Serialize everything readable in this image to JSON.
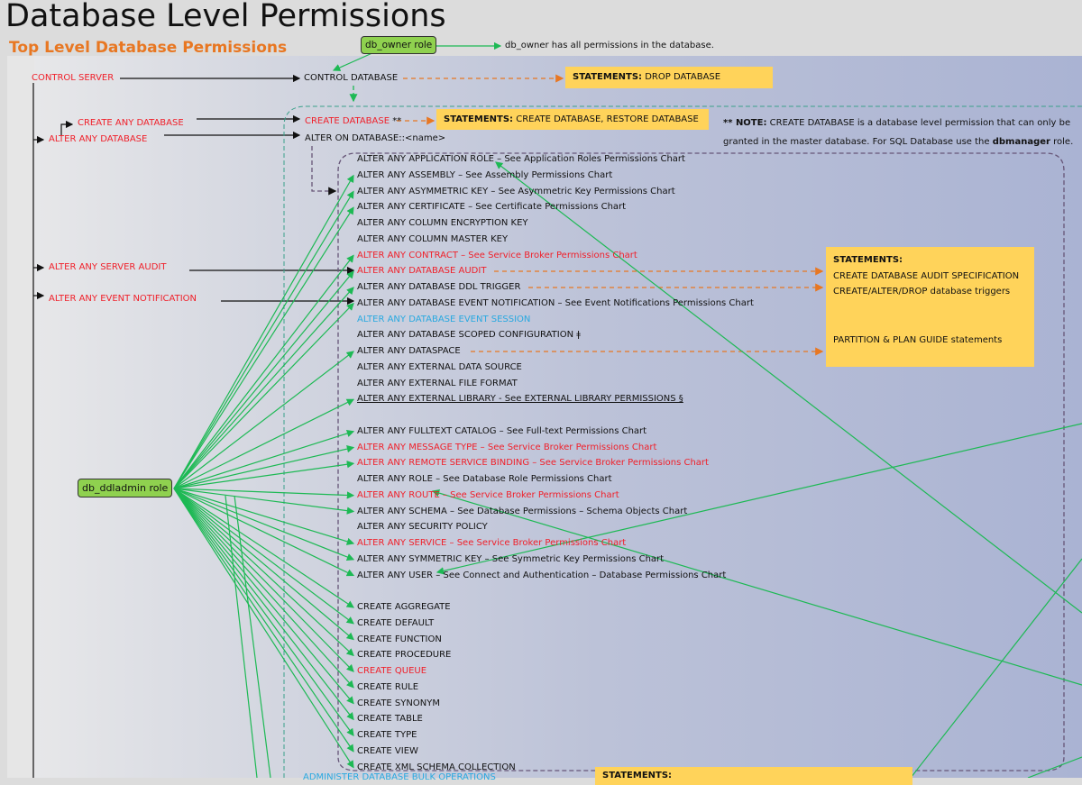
{
  "title": "Database Level Permissions",
  "subtitle": "Top Level Database Permissions",
  "colors": {
    "accent_orange": "#e87722",
    "role_green": "#8fd14f",
    "statement_yellow": "#ffd35a",
    "server_red": "#f0202a",
    "special_blue": "#29a9e0",
    "arrow_green": "#1db954"
  },
  "db_owner": {
    "label": "db_owner role",
    "note": "db_owner has all permissions in the database."
  },
  "db_ddladmin": {
    "label": "db_ddladmin role"
  },
  "server": {
    "control_server": "CONTROL SERVER",
    "create_any_database": "CREATE ANY DATABASE",
    "alter_any_database": "ALTER ANY DATABASE",
    "alter_any_server_audit": "ALTER ANY SERVER AUDIT",
    "alter_any_event_notification": "ALTER ANY EVENT NOTIFICATION"
  },
  "database": {
    "control_database": "CONTROL DATABASE",
    "create_database": "CREATE DATABASE",
    "create_database_mark": "**",
    "alter_on_database": "ALTER ON DATABASE::<name>",
    "administer_bulk": "ADMINISTER DATABASE BULK OPERATIONS"
  },
  "statements": {
    "label": "STATEMENTS:",
    "drop": "DROP DATABASE",
    "create": "CREATE DATABASE, RESTORE DATABASE",
    "audit_spec": "CREATE DATABASE AUDIT SPECIFICATION",
    "triggers": "CREATE/ALTER/DROP database triggers",
    "partition": "PARTITION & PLAN GUIDE statements"
  },
  "note": {
    "prefix": "** NOTE:",
    "text1": "CREATE DATABASE is a database level permission that can only be",
    "text2": "granted in the master database. For SQL Database use the",
    "bold": "dbmanager",
    "text3": "role."
  },
  "permissions": [
    {
      "label": "ALTER ANY APPLICATION ROLE – See Application Roles Permissions Chart",
      "color": "black",
      "ddl": false
    },
    {
      "label": "ALTER ANY ASSEMBLY – See Assembly Permissions Chart",
      "color": "black",
      "ddl": true
    },
    {
      "label": "ALTER ANY ASYMMETRIC KEY – See Asymmetric Key Permissions Chart",
      "color": "black",
      "ddl": true
    },
    {
      "label": "ALTER ANY CERTIFICATE – See Certificate Permissions Chart",
      "color": "black",
      "ddl": true
    },
    {
      "label": "ALTER ANY COLUMN ENCRYPTION KEY",
      "color": "black",
      "ddl": false
    },
    {
      "label": "ALTER ANY COLUMN MASTER KEY",
      "color": "black",
      "ddl": false
    },
    {
      "label": "ALTER ANY CONTRACT – See Service Broker Permissions Chart",
      "color": "red",
      "ddl": true
    },
    {
      "label": "ALTER ANY DATABASE AUDIT",
      "color": "red",
      "ddl": true
    },
    {
      "label": "ALTER ANY DATABASE DDL TRIGGER",
      "color": "black",
      "ddl": true
    },
    {
      "label": "ALTER ANY DATABASE EVENT NOTIFICATION – See Event Notifications Permissions Chart",
      "color": "black",
      "ddl": true
    },
    {
      "label": "ALTER ANY DATABASE EVENT SESSION",
      "color": "blue",
      "ddl": false
    },
    {
      "label": "ALTER ANY DATABASE SCOPED CONFIGURATION ǂ",
      "color": "black",
      "ddl": false
    },
    {
      "label": "ALTER ANY DATASPACE",
      "color": "black",
      "ddl": true
    },
    {
      "label": "ALTER ANY EXTERNAL DATA SOURCE",
      "color": "black",
      "ddl": false
    },
    {
      "label": "ALTER ANY EXTERNAL FILE FORMAT",
      "color": "black",
      "ddl": false
    },
    {
      "label": "ALTER ANY EXTERNAL LIBRARY - See EXTERNAL LIBRARY PERMISSIONS §",
      "color": "black",
      "ddl": true,
      "underline": true
    },
    null,
    {
      "label": "ALTER ANY FULLTEXT CATALOG – See Full-text Permissions Chart",
      "color": "black",
      "ddl": true
    },
    {
      "label": "ALTER ANY MESSAGE TYPE – See Service Broker Permissions Chart",
      "color": "red",
      "ddl": true
    },
    {
      "label": "ALTER ANY REMOTE SERVICE BINDING – See Service Broker Permissions Chart",
      "color": "red",
      "ddl": true
    },
    {
      "label": "ALTER ANY ROLE – See Database Role Permissions Chart",
      "color": "black",
      "ddl": false
    },
    {
      "label": "ALTER ANY ROUTE – See Service Broker Permissions Chart",
      "color": "red",
      "ddl": true
    },
    {
      "label": "ALTER ANY SCHEMA – See Database Permissions – Schema Objects Chart",
      "color": "black",
      "ddl": true
    },
    {
      "label": "ALTER ANY SECURITY POLICY",
      "color": "black",
      "ddl": false
    },
    {
      "label": "ALTER ANY SERVICE – See Service Broker Permissions Chart",
      "color": "red",
      "ddl": true
    },
    {
      "label": "ALTER ANY SYMMETRIC KEY – See Symmetric Key Permissions Chart",
      "color": "black",
      "ddl": true
    },
    {
      "label": "ALTER ANY USER – See Connect and Authentication – Database Permissions Chart",
      "color": "black",
      "ddl": true
    },
    null,
    {
      "label": "CREATE AGGREGATE",
      "color": "black",
      "ddl": true
    },
    {
      "label": "CREATE DEFAULT",
      "color": "black",
      "ddl": true
    },
    {
      "label": "CREATE FUNCTION",
      "color": "black",
      "ddl": true
    },
    {
      "label": "CREATE PROCEDURE",
      "color": "black",
      "ddl": true
    },
    {
      "label": "CREATE QUEUE",
      "color": "red",
      "ddl": true
    },
    {
      "label": "CREATE RULE",
      "color": "black",
      "ddl": true
    },
    {
      "label": "CREATE SYNONYM",
      "color": "black",
      "ddl": true
    },
    {
      "label": "CREATE TABLE",
      "color": "black",
      "ddl": true
    },
    {
      "label": "CREATE TYPE",
      "color": "black",
      "ddl": true
    },
    {
      "label": "CREATE VIEW",
      "color": "black",
      "ddl": true
    },
    {
      "label": "CREATE XML SCHEMA COLLECTION",
      "color": "black",
      "ddl": true
    }
  ]
}
